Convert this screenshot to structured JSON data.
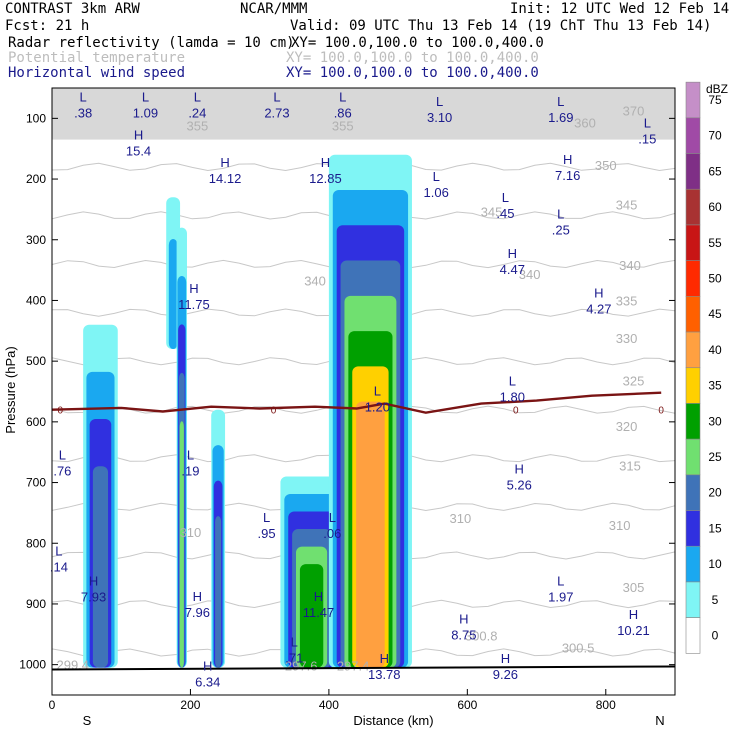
{
  "header": {
    "left_title": "CONTRAST  3km ARW",
    "center_title": "NCAR/MMM",
    "init": "Init: 12 UTC Wed 12 Feb 14",
    "fcst": "Fcst:   21 h",
    "valid": "Valid: 09 UTC Thu 13 Feb 14 (19 ChT Thu 13 Feb 14)",
    "fields": [
      {
        "name": "Radar reflectivity (lamda = 10 cm)",
        "xy": "XY= 100.0,100.0 to 100.0,400.0",
        "color": "#000000"
      },
      {
        "name": "Potential temperature",
        "xy": "XY= 100.0,100.0 to 100.0,400.0",
        "color": "#bdbdbd"
      },
      {
        "name": "Horizontal wind speed",
        "xy": "XY= 100.0,100.0 to 100.0,400.0",
        "color": "#1a1a8c"
      }
    ]
  },
  "chart_data": {
    "type": "heatmap",
    "xlabel": "Distance (km)",
    "ylabel": "Pressure (hPa)",
    "xlim": [
      0,
      900
    ],
    "ylim": [
      1050,
      50
    ],
    "x_ticks": [
      0,
      200,
      400,
      600,
      800
    ],
    "y_ticks": [
      100,
      200,
      300,
      400,
      500,
      600,
      700,
      800,
      900,
      1000
    ],
    "x_end_labels": {
      "left": "S",
      "right": "N"
    },
    "colorbar": {
      "unit": "dBZ",
      "levels": [
        "75",
        "70",
        "65",
        "60",
        "55",
        "50",
        "45",
        "40",
        "35",
        "30",
        "25",
        "20",
        "15",
        "10",
        "5",
        "0"
      ],
      "colors": [
        "#c58fc8",
        "#a04aa6",
        "#7f2f86",
        "#a83232",
        "#c81515",
        "#ff2a00",
        "#ff6000",
        "#ffa040",
        "#ffd000",
        "#00a000",
        "#70e070",
        "#3f73b8",
        "#3030e0",
        "#1aa8f0",
        "#7ff5f5",
        "#ffffff"
      ]
    },
    "reflectivity_cells": [
      {
        "x0": 45,
        "x1": 95,
        "ptop": 440,
        "pbot": 1005,
        "peak": "20"
      },
      {
        "x0": 165,
        "x1": 185,
        "ptop": 230,
        "pbot": 480,
        "peak": "10"
      },
      {
        "x0": 180,
        "x1": 195,
        "ptop": 280,
        "pbot": 1005,
        "peak": "25"
      },
      {
        "x0": 230,
        "x1": 250,
        "ptop": 580,
        "pbot": 1005,
        "peak": "20"
      },
      {
        "x0": 330,
        "x1": 420,
        "ptop": 690,
        "pbot": 1005,
        "peak": "30"
      },
      {
        "x0": 400,
        "x1": 520,
        "ptop": 160,
        "pbot": 1005,
        "peak": "40"
      }
    ],
    "freezing_level": {
      "label": "0",
      "points": [
        [
          0,
          580
        ],
        [
          100,
          577
        ],
        [
          160,
          583
        ],
        [
          230,
          575
        ],
        [
          300,
          578
        ],
        [
          380,
          575
        ],
        [
          440,
          578
        ],
        [
          480,
          570
        ],
        [
          540,
          585
        ],
        [
          620,
          570
        ],
        [
          700,
          565
        ],
        [
          780,
          557
        ],
        [
          880,
          552
        ]
      ]
    },
    "theta_labels": [
      {
        "text": "370",
        "x": 840,
        "p": 95
      },
      {
        "text": "360",
        "x": 770,
        "p": 115
      },
      {
        "text": "355",
        "x": 210,
        "p": 120
      },
      {
        "text": "355",
        "x": 420,
        "p": 120
      },
      {
        "text": "350",
        "x": 800,
        "p": 185
      },
      {
        "text": "345",
        "x": 830,
        "p": 250
      },
      {
        "text": "345",
        "x": 635,
        "p": 262
      },
      {
        "text": "340",
        "x": 380,
        "p": 375
      },
      {
        "text": "340",
        "x": 690,
        "p": 365
      },
      {
        "text": "340",
        "x": 835,
        "p": 350
      },
      {
        "text": "335",
        "x": 830,
        "p": 408
      },
      {
        "text": "330",
        "x": 830,
        "p": 470
      },
      {
        "text": "325",
        "x": 840,
        "p": 540
      },
      {
        "text": "320",
        "x": 830,
        "p": 615
      },
      {
        "text": "315",
        "x": 835,
        "p": 680
      },
      {
        "text": "310",
        "x": 200,
        "p": 790
      },
      {
        "text": "310",
        "x": 590,
        "p": 767
      },
      {
        "text": "310",
        "x": 820,
        "p": 778
      },
      {
        "text": "305",
        "x": 840,
        "p": 880
      },
      {
        "text": "300.8",
        "x": 620,
        "p": 960
      },
      {
        "text": "300.5",
        "x": 760,
        "p": 980
      },
      {
        "text": "297.6",
        "x": 360,
        "p": 1010
      },
      {
        "text": "297.4",
        "x": 435,
        "p": 1010
      },
      {
        "text": "299.4",
        "x": 30,
        "p": 1008
      }
    ],
    "wind_extrema": [
      {
        "t": "L",
        "v": ".38",
        "x": 45,
        "p": 72
      },
      {
        "t": "L",
        "v": "1.09",
        "x": 135,
        "p": 72
      },
      {
        "t": "L",
        "v": ".24",
        "x": 210,
        "p": 72
      },
      {
        "t": "L",
        "v": "2.73",
        "x": 325,
        "p": 72
      },
      {
        "t": "L",
        "v": ".86",
        "x": 420,
        "p": 72
      },
      {
        "t": "L",
        "v": "3.10",
        "x": 560,
        "p": 80
      },
      {
        "t": "L",
        "v": "1.69",
        "x": 735,
        "p": 80
      },
      {
        "t": "L",
        "v": ".15",
        "x": 860,
        "p": 115
      },
      {
        "t": "H",
        "v": "15.4",
        "x": 125,
        "p": 135
      },
      {
        "t": "H",
        "v": "14.12",
        "x": 250,
        "p": 180
      },
      {
        "t": "H",
        "v": "12.85",
        "x": 395,
        "p": 180
      },
      {
        "t": "H",
        "v": "7.16",
        "x": 745,
        "p": 175
      },
      {
        "t": "L",
        "v": "1.06",
        "x": 555,
        "p": 203
      },
      {
        "t": "L",
        "v": ".45",
        "x": 655,
        "p": 238
      },
      {
        "t": "L",
        "v": ".25",
        "x": 735,
        "p": 265
      },
      {
        "t": "H",
        "v": "4.47",
        "x": 665,
        "p": 330
      },
      {
        "t": "H",
        "v": "11.75",
        "x": 205,
        "p": 388
      },
      {
        "t": "H",
        "v": "4.27",
        "x": 790,
        "p": 395
      },
      {
        "t": "L",
        "v": "1.80",
        "x": 665,
        "p": 540
      },
      {
        "t": "L",
        "v": "1.20",
        "x": 470,
        "p": 557
      },
      {
        "t": "L",
        "v": ".76",
        "x": 15,
        "p": 662
      },
      {
        "t": "L",
        "v": ".19",
        "x": 200,
        "p": 662
      },
      {
        "t": "H",
        "v": "5.26",
        "x": 675,
        "p": 685
      },
      {
        "t": "L",
        "v": ".95",
        "x": 310,
        "p": 765
      },
      {
        "t": "L",
        "v": ".06",
        "x": 405,
        "p": 765
      },
      {
        "t": "L",
        "v": ".14",
        "x": 10,
        "p": 820
      },
      {
        "t": "H",
        "v": "7.93",
        "x": 60,
        "p": 870
      },
      {
        "t": "L",
        "v": "1.97",
        "x": 735,
        "p": 870
      },
      {
        "t": "H",
        "v": "7.96",
        "x": 210,
        "p": 895
      },
      {
        "t": "H",
        "v": "11.47",
        "x": 385,
        "p": 895
      },
      {
        "t": "H",
        "v": "8.75",
        "x": 595,
        "p": 932
      },
      {
        "t": "H",
        "v": "10.21",
        "x": 840,
        "p": 925
      },
      {
        "t": "L",
        "v": ".71",
        "x": 350,
        "p": 970
      },
      {
        "t": "H",
        "v": "6.34",
        "x": 225,
        "p": 1010
      },
      {
        "t": "H",
        "v": "13.78",
        "x": 480,
        "p": 997
      },
      {
        "t": "H",
        "v": "9.26",
        "x": 655,
        "p": 997
      }
    ]
  }
}
